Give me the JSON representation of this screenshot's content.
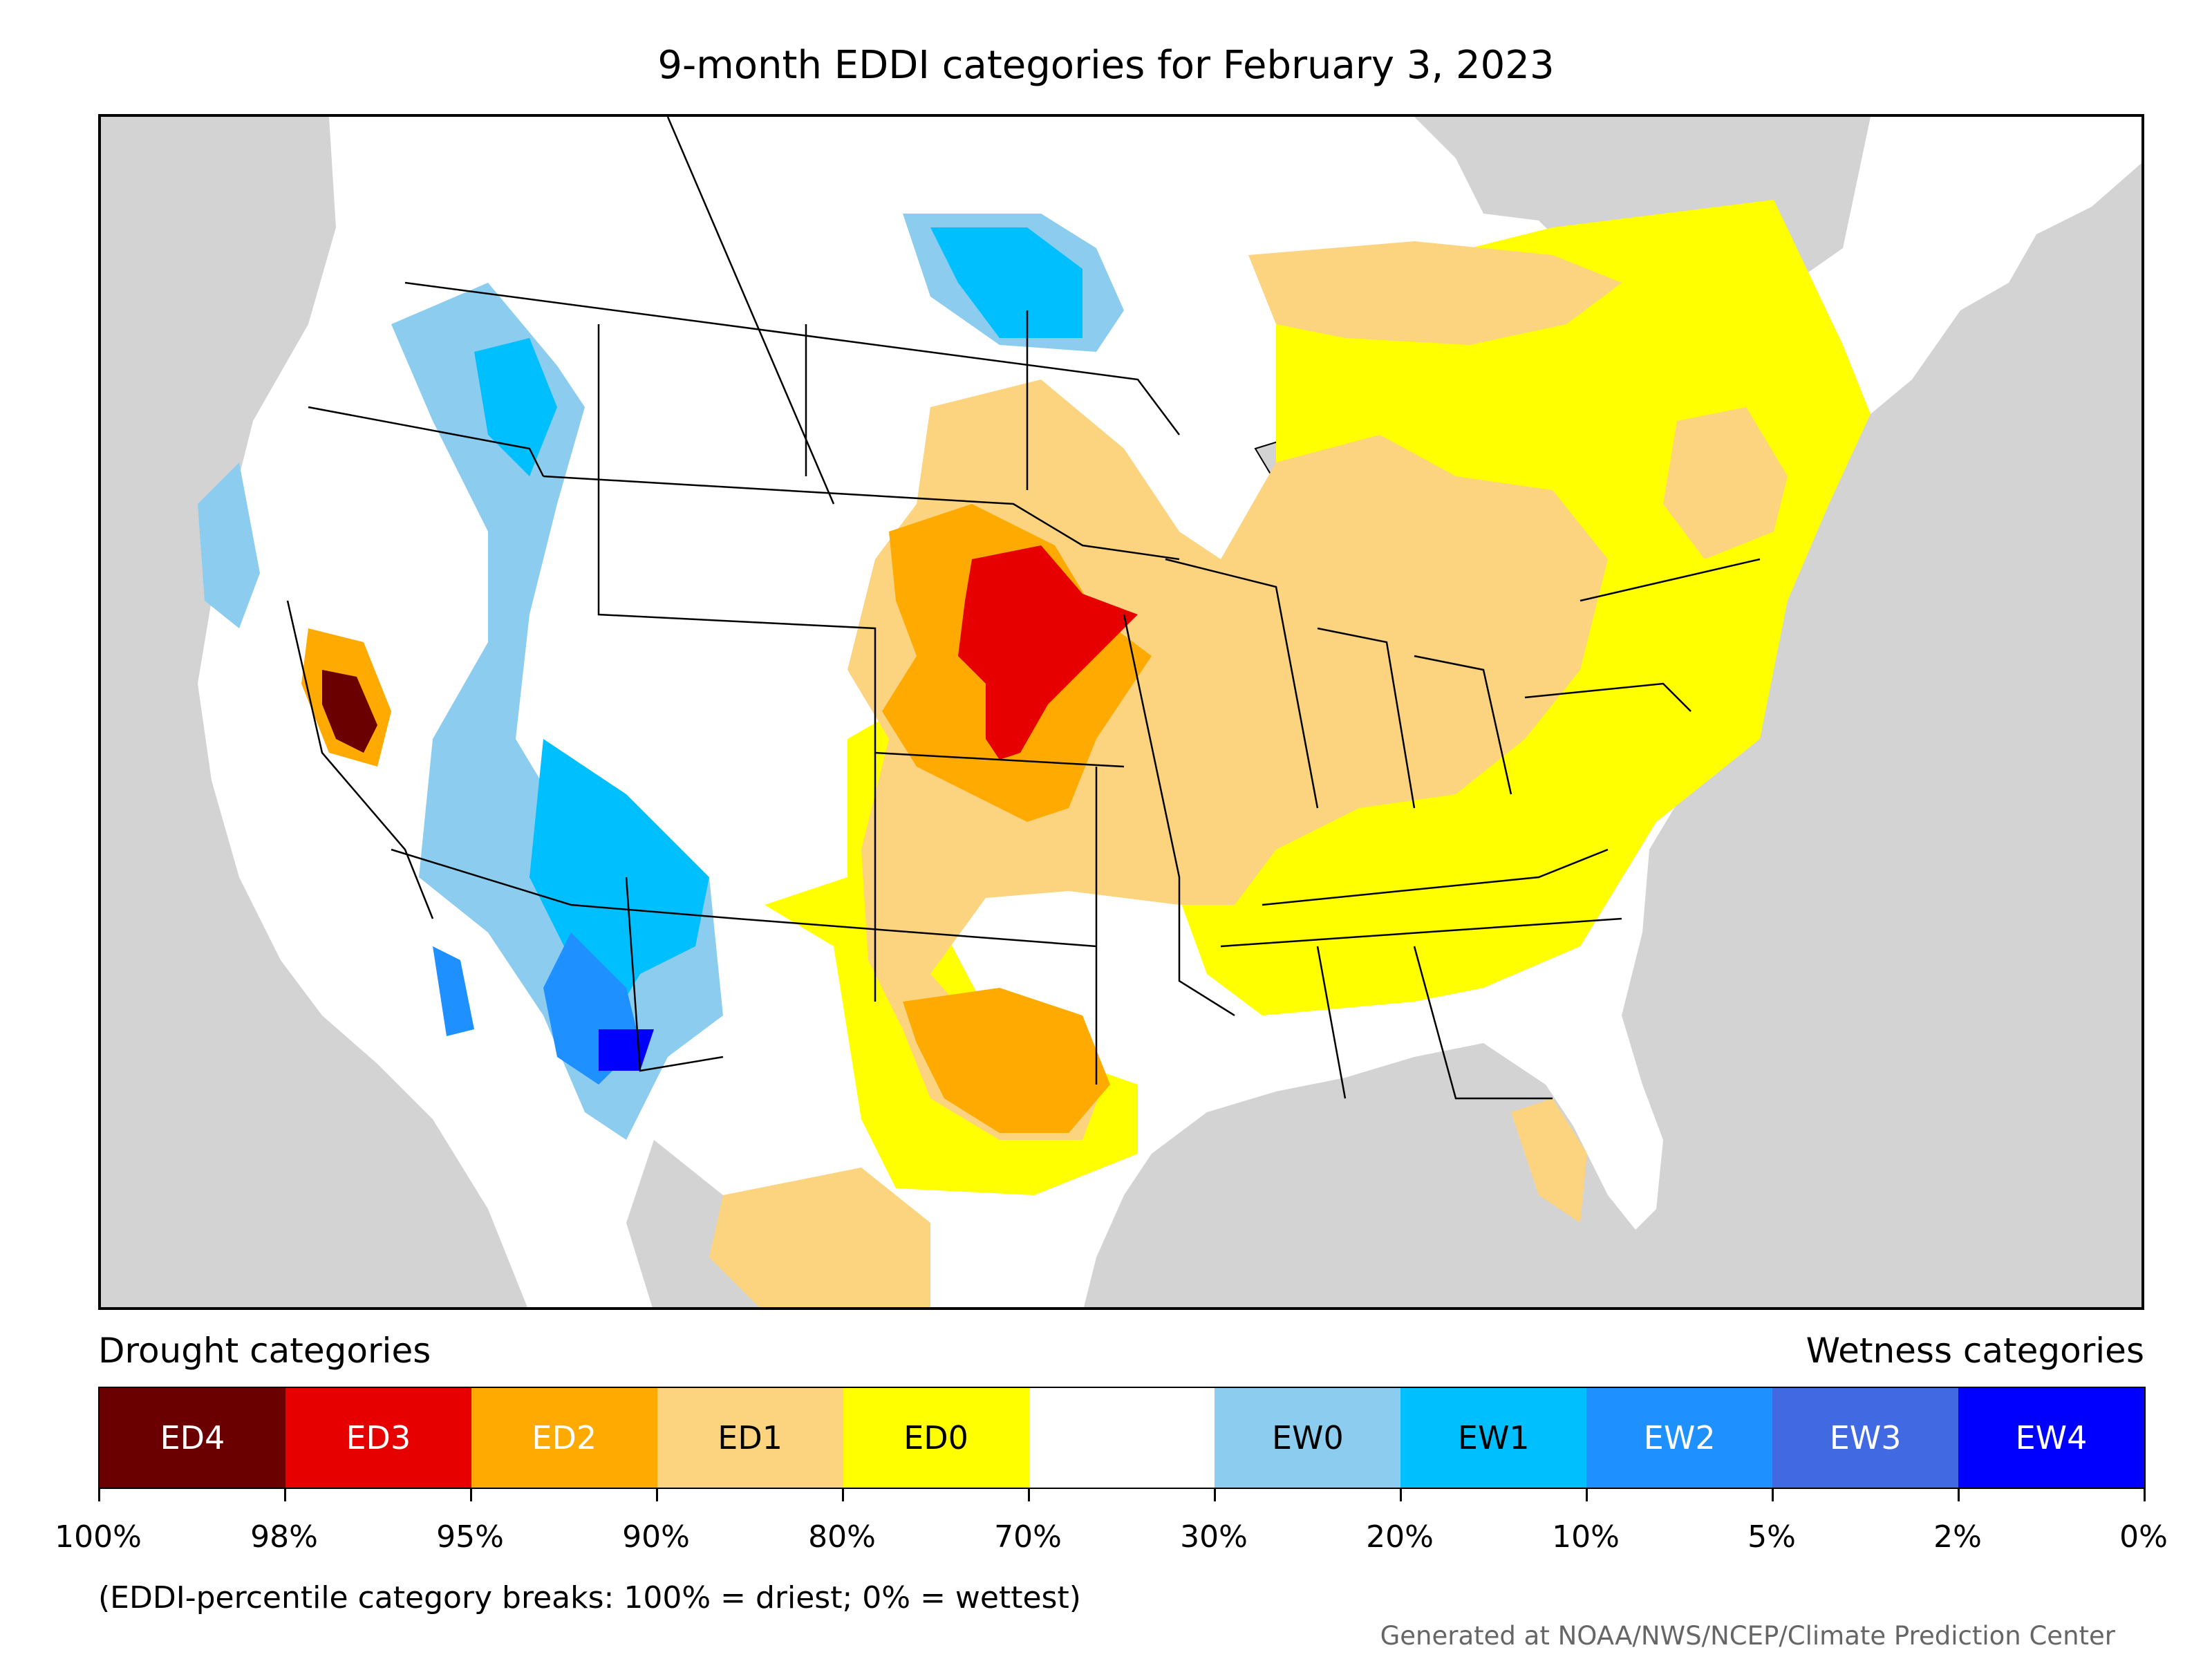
{
  "title": "9-month EDDI categories for February 3, 2023",
  "legend": {
    "drought_heading": "Drought categories",
    "wetness_heading": "Wetness categories",
    "categories": [
      {
        "label": "ED4",
        "color": "#6b0000",
        "text_color": "#ffffff"
      },
      {
        "label": "ED3",
        "color": "#e60000",
        "text_color": "#ffffff"
      },
      {
        "label": "ED2",
        "color": "#ffaa00",
        "text_color": "#ffffff"
      },
      {
        "label": "ED1",
        "color": "#fcd37f",
        "text_color": "#000000"
      },
      {
        "label": "ED0",
        "color": "#ffff00",
        "text_color": "#000000"
      },
      {
        "label": "",
        "color": "#ffffff",
        "text_color": "#000000"
      },
      {
        "label": "EW0",
        "color": "#8ccdef",
        "text_color": "#000000"
      },
      {
        "label": "EW1",
        "color": "#00bfff",
        "text_color": "#000000"
      },
      {
        "label": "EW2",
        "color": "#1e90ff",
        "text_color": "#ffffff"
      },
      {
        "label": "EW3",
        "color": "#4169e1",
        "text_color": "#ffffff"
      },
      {
        "label": "EW4",
        "color": "#0000ff",
        "text_color": "#ffffff"
      }
    ],
    "breaks": [
      "100%",
      "98%",
      "95%",
      "90%",
      "80%",
      "70%",
      "30%",
      "20%",
      "10%",
      "5%",
      "2%",
      "0%"
    ]
  },
  "note": "(EDDI-percentile category breaks: 100% = driest; 0% = wettest)",
  "credit": "Generated at NOAA/NWS/NCEP/Climate Prediction Center",
  "colors": {
    "ocean": "#d3d3d3",
    "land": "#ffffff",
    "border": "#000000"
  }
}
